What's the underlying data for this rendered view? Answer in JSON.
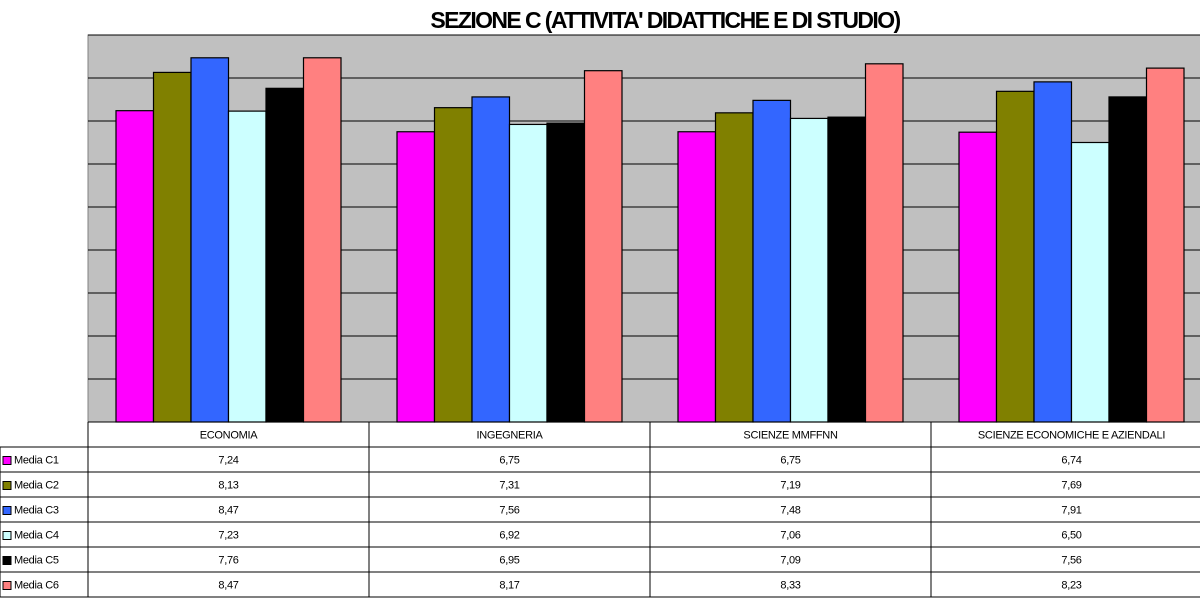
{
  "chart_data": {
    "type": "bar",
    "title": "SEZIONE C (ATTIVITA' DIDATTICHE E DI STUDIO)",
    "categories": [
      "ECONOMIA",
      "INGEGNERIA",
      "SCIENZE MMFFNN",
      "SCIENZE ECONOMICHE E AZIENDALI"
    ],
    "series": [
      {
        "name": "Media C1",
        "color": "#ff00ff",
        "values": [
          7.24,
          6.75,
          6.75,
          6.74
        ],
        "value_labels": [
          "7,24",
          "6,75",
          "6,75",
          "6,74"
        ]
      },
      {
        "name": "Media C2",
        "color": "#808000",
        "values": [
          8.13,
          7.31,
          7.19,
          7.69
        ],
        "value_labels": [
          "8,13",
          "7,31",
          "7,19",
          "7,69"
        ]
      },
      {
        "name": "Media C3",
        "color": "#3366ff",
        "values": [
          8.47,
          7.56,
          7.48,
          7.91
        ],
        "value_labels": [
          "8,47",
          "7,56",
          "7,48",
          "7,91"
        ]
      },
      {
        "name": "Media C4",
        "color": "#ccffff",
        "values": [
          7.23,
          6.92,
          7.06,
          6.5
        ],
        "value_labels": [
          "7,23",
          "6,92",
          "7,06",
          "6,50"
        ]
      },
      {
        "name": "Media C5",
        "color": "#000000",
        "values": [
          7.76,
          6.95,
          7.09,
          7.56
        ],
        "value_labels": [
          "7,76",
          "6,95",
          "7,09",
          "7,56"
        ]
      },
      {
        "name": "Media C6",
        "color": "#ff8080",
        "values": [
          8.47,
          8.17,
          8.33,
          8.23
        ],
        "value_labels": [
          "8,47",
          "8,17",
          "8,33",
          "8,23"
        ]
      }
    ],
    "ylim": [
      0,
      9
    ],
    "yticks": [
      0,
      1,
      2,
      3,
      4,
      5,
      6,
      7,
      8,
      9
    ],
    "grid": true,
    "plot_background": "#c0c0c0"
  }
}
